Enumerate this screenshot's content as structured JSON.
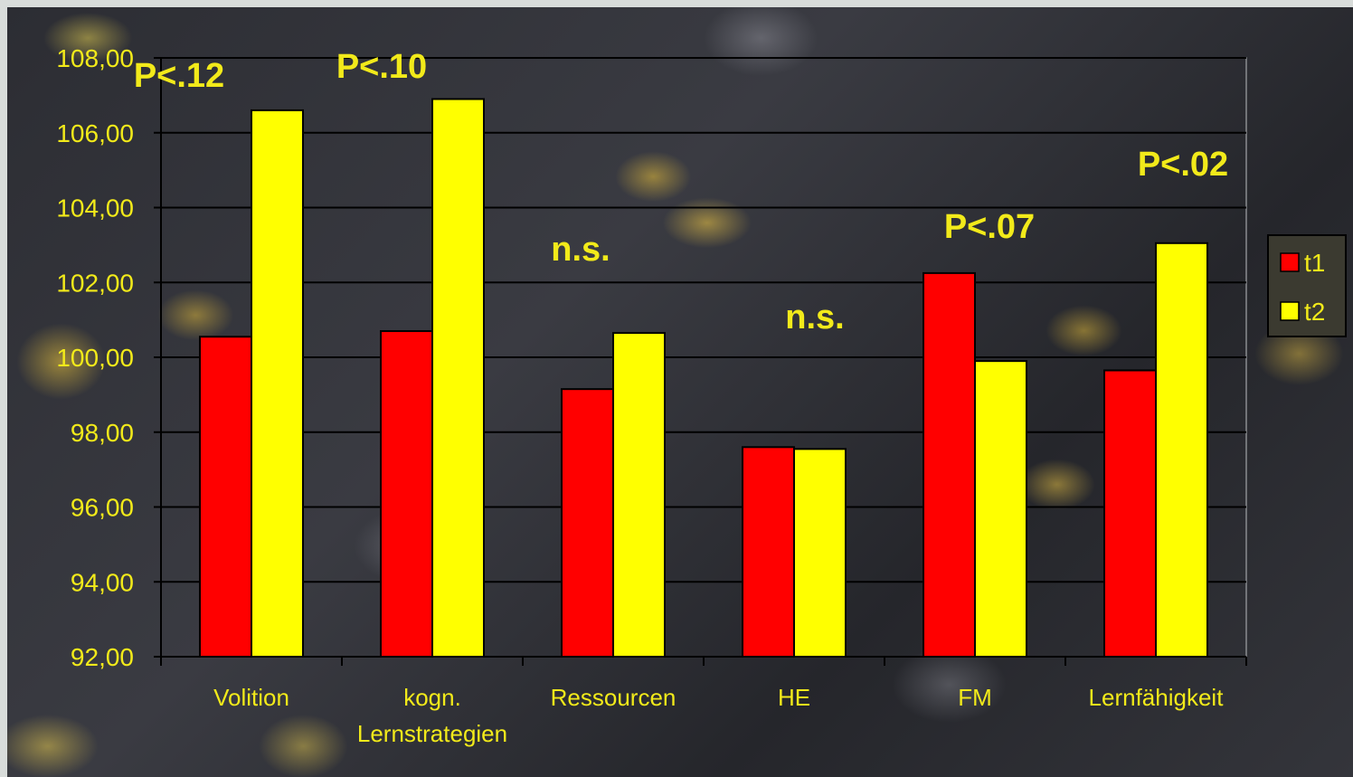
{
  "chart_data": {
    "type": "bar",
    "categories": [
      "Volition",
      "kogn. Lernstrategien",
      "Ressourcen",
      "HE",
      "FM",
      "Lernfähigkeit"
    ],
    "category_lines": [
      [
        "Volition"
      ],
      [
        "kogn.",
        "Lernstrategien"
      ],
      [
        "Ressourcen"
      ],
      [
        "HE"
      ],
      [
        "FM"
      ],
      [
        "Lernfähigkeit"
      ]
    ],
    "series": [
      {
        "name": "t1",
        "color": "#ff0000",
        "values": [
          100.55,
          100.7,
          99.15,
          97.6,
          102.25,
          99.65
        ]
      },
      {
        "name": "t2",
        "color": "#ffff00",
        "values": [
          106.6,
          106.9,
          100.65,
          97.55,
          99.9,
          103.05
        ]
      }
    ],
    "ylim": [
      92,
      108
    ],
    "yticks": [
      "92,00",
      "94,00",
      "96,00",
      "98,00",
      "100,00",
      "102,00",
      "104,00",
      "106,00",
      "108,00"
    ],
    "annotations": [
      "P<.12",
      "P<.10",
      "n.s.",
      "n.s.",
      "P<.07",
      "P<.02"
    ],
    "grid": true,
    "legend_position": "right",
    "title": "",
    "xlabel": "",
    "ylabel": ""
  },
  "colors": {
    "text": "#f2ea1a",
    "gridline": "#000000"
  }
}
